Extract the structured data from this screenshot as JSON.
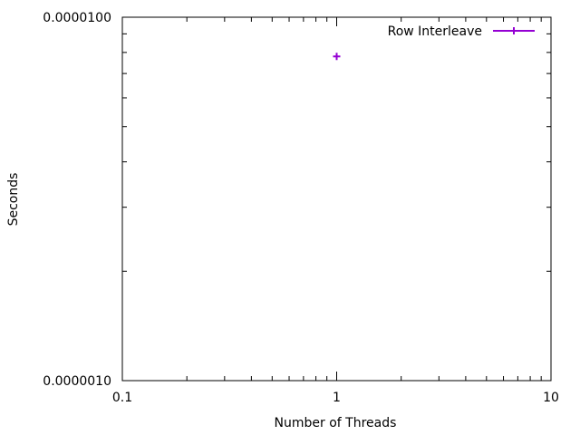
{
  "chart_data": {
    "type": "scatter",
    "title": "",
    "xlabel": "Number of Threads",
    "ylabel": "Seconds",
    "x_scale": "log",
    "y_scale": "log",
    "xlim": [
      0.1,
      10
    ],
    "ylim": [
      1e-06,
      1e-05
    ],
    "x_ticks": [
      {
        "value": 0.1,
        "label": "0.1"
      },
      {
        "value": 1,
        "label": "1"
      },
      {
        "value": 10,
        "label": "10"
      }
    ],
    "y_ticks": [
      {
        "value": 1e-06,
        "label": "0.0000010"
      },
      {
        "value": 1e-05,
        "label": "0.0000100"
      }
    ],
    "grid": false,
    "legend": "top-right",
    "series": [
      {
        "name": "Row Interleave",
        "color": "#9400d3",
        "marker": "plus",
        "points": [
          {
            "x": 1,
            "y": 7.8e-06
          }
        ]
      }
    ]
  }
}
